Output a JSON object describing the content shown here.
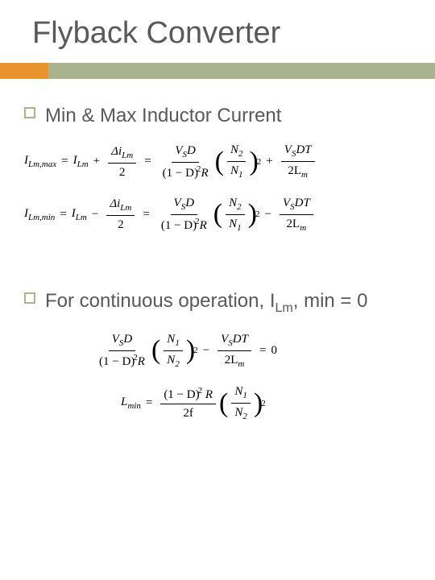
{
  "title": "Flyback Converter",
  "bullets": {
    "b1": "Min & Max Inductor Current",
    "b2_pre": "For continuous operation, I",
    "b2_sub": "Lm",
    "b2_post": ", min = 0"
  },
  "eq": {
    "ilm_max": "I",
    "ilm_max_sub": "Lm,max",
    "ilm_min": "I",
    "ilm_min_sub": "Lm,min",
    "ilm": "I",
    "ilm_sub": "Lm",
    "lmin": "L",
    "lmin_sub": "min",
    "delta_ilm": "Δi",
    "delta_ilm_sub": "Lm",
    "two": "2",
    "vs_d": "V",
    "vs_sub": "S",
    "d": "D",
    "one_minus_d": "(1 − D)",
    "sq": "2",
    "r": "R",
    "n2": "N",
    "n2_sub": "2",
    "n1": "N",
    "n1_sub": "1",
    "vs_dt": "V",
    "dt": "DT",
    "two_lm": "2L",
    "lm_sub": "m",
    "two_f": "2f",
    "zero": "0",
    "eq_sign": "=",
    "plus": "+",
    "minus": "−"
  },
  "colors": {
    "accent": "#e8932e",
    "bar": "#a9b48f",
    "title": "#595959"
  }
}
